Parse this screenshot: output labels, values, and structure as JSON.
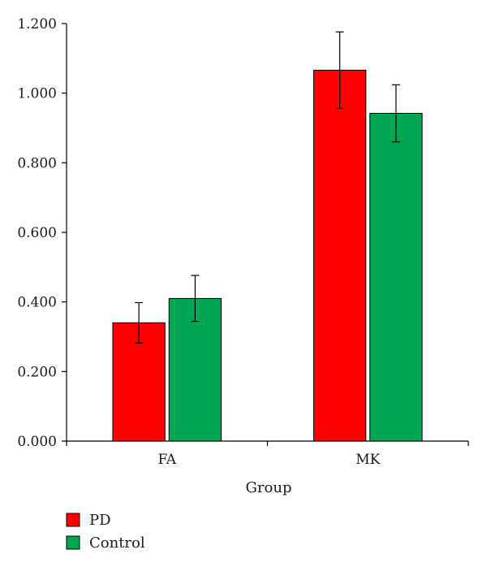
{
  "chart_data": {
    "type": "bar",
    "categories": [
      "FA",
      "MK"
    ],
    "series": [
      {
        "name": "PD",
        "color": "#ff0000",
        "values": [
          0.34,
          1.066
        ],
        "errors": [
          0.058,
          0.11
        ]
      },
      {
        "name": "Control",
        "color": "#00a651",
        "values": [
          0.41,
          0.942
        ],
        "errors": [
          0.066,
          0.082
        ]
      }
    ],
    "xlabel": "Group",
    "ylabel": "",
    "ylim": [
      0,
      1.2
    ],
    "yticks": [
      "0.000",
      "0.200",
      "0.400",
      "0.600",
      "0.800",
      "1.000",
      "1.200"
    ],
    "grid": false,
    "legend_position": "bottom-left"
  }
}
